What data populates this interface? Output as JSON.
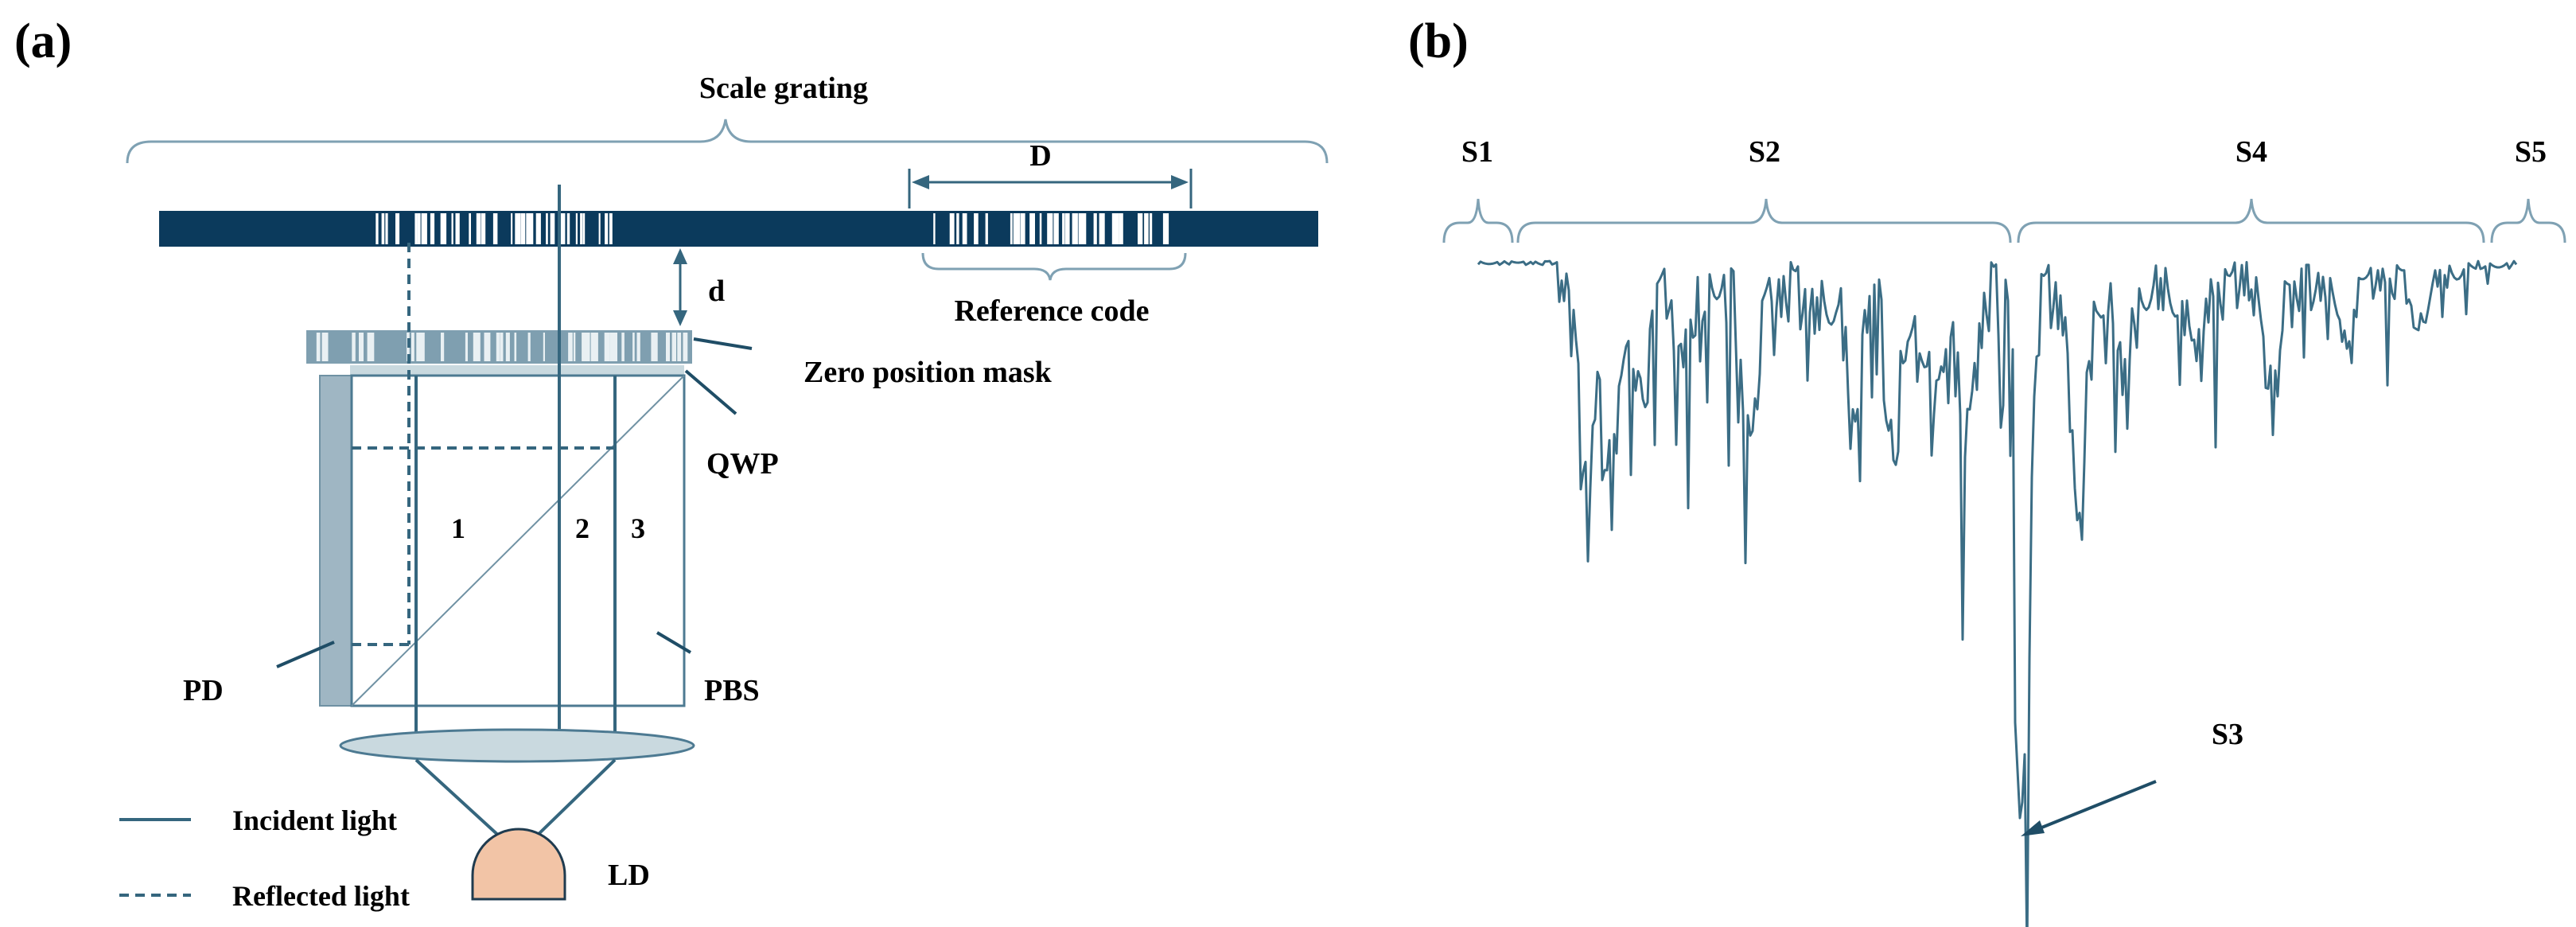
{
  "panels": {
    "a": {
      "label": "(a)",
      "scale_grating": "Scale grating",
      "distance_D": "D",
      "distance_d": "d",
      "reference_code": "Reference code",
      "zero_position_mask": "Zero position mask",
      "qwp": "QWP",
      "pd": "PD",
      "pbs": "PBS",
      "ld": "LD",
      "beam_1": "1",
      "beam_2": "2",
      "beam_3": "3",
      "legend": {
        "incident": "Incident light",
        "reflected": "Reflected light"
      }
    },
    "b": {
      "label": "(b)",
      "segments": {
        "s1": "S1",
        "s2": "S2",
        "s3": "S3",
        "s4": "S4",
        "s5": "S5"
      }
    }
  },
  "colors": {
    "grating": "#0b3a5c",
    "mask": "#7f9fb0",
    "pbs_stroke": "#4d7a92",
    "pd_fill": "#9fb6c3",
    "lens_fill": "#c9d9df",
    "laser_fill": "#f2c4a6",
    "signal": "#3b6d85",
    "brace": "#7fa1b3"
  }
}
